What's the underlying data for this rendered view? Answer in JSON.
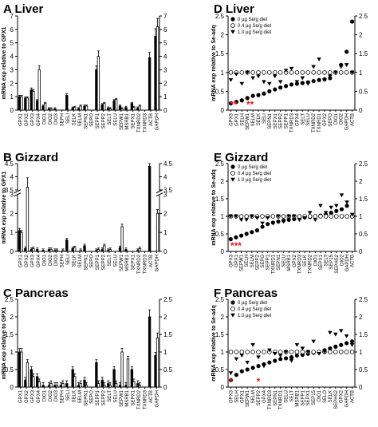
{
  "chart_data": [
    {
      "id": "A",
      "type": "bar",
      "panel_letter": "A",
      "title": "Liver",
      "ylabel": "mRNA exp relative to GPX1",
      "ylim": [
        0,
        7
      ],
      "yticks": [
        0,
        1,
        2,
        3,
        4,
        5,
        6,
        7
      ],
      "categories": [
        "GPX1",
        "GPX2",
        "GPX3",
        "GPX4",
        "DIO1",
        "DIO2",
        "DIO3",
        "SEPH",
        "SELI",
        "SELK",
        "SELM",
        "SEPN1",
        "SEPO",
        "SEPP1",
        "SEPP2",
        "SELT",
        "SELU",
        "SEPW1",
        "MSRB1",
        "SEPX1",
        "TXNRD2",
        "TXNRD3",
        "ACTB",
        "GAPDH"
      ],
      "series": [
        {
          "values": [
            1.0,
            0.9,
            1.5,
            0.7,
            0.3,
            0.1,
            0.1,
            0.0,
            1.1,
            0.15,
            0.1,
            0.3,
            0.0,
            3.0,
            0.4,
            0.15,
            0.7,
            0.3,
            0.2,
            0.5,
            0.15,
            0.0,
            3.9,
            5.5
          ]
        },
        {
          "values": [
            1.0,
            0.9,
            1.4,
            3.0,
            0.5,
            0.1,
            0.0,
            0.0,
            0.0,
            0.2,
            0.3,
            0.3,
            0.0,
            4.0,
            0.5,
            0.1,
            0.8,
            0.1,
            0.0,
            0.2,
            0.3,
            0.0,
            0.0,
            6.2
          ]
        }
      ]
    },
    {
      "id": "B",
      "type": "bar",
      "panel_letter": "B",
      "title": "Gizzard",
      "ylabel": "mRNA exp relative to GPX1",
      "ylim": [
        0,
        4.5
      ],
      "yticks_left": [
        0,
        1,
        2,
        3,
        3.5,
        4,
        4.5
      ],
      "yticks_right": [
        0,
        1,
        2,
        3,
        3.5,
        4,
        4.5
      ],
      "axis_break": true,
      "categories": [
        "GPX1",
        "GPX2",
        "GPX3",
        "GPX4",
        "DIO1",
        "DIO2",
        "DIO3",
        "SEPH",
        "SELI",
        "SELK",
        "SELM",
        "SEPN1",
        "SEPO",
        "SEPP1",
        "SEPP2",
        "SELT",
        "SELU",
        "SEPW1",
        "MSRB1",
        "SEPX1",
        "TXNRD2",
        "TXNRD3",
        "ACTB",
        "GAPDH"
      ],
      "series": [
        {
          "values": [
            1.1,
            0.15,
            0.1,
            0.1,
            0.05,
            0.1,
            0.05,
            0.0,
            0.6,
            0.15,
            0.0,
            0.3,
            0.0,
            0.05,
            0.1,
            0.05,
            0.0,
            0.2,
            0.1,
            0.0,
            0.05,
            0.0,
            4.4,
            0.0
          ]
        },
        {
          "values": [
            1.0,
            3.6,
            0.15,
            0.0,
            0.0,
            0.1,
            0.05,
            0.05,
            0.0,
            0.2,
            0.05,
            0.0,
            0.0,
            0.1,
            0.3,
            0.1,
            0.0,
            1.3,
            0.0,
            0.0,
            0.15,
            0.0,
            0.0,
            2.0
          ]
        }
      ]
    },
    {
      "id": "C",
      "type": "bar",
      "panel_letter": "C",
      "title": "Pancreas",
      "ylabel": "mRNA exp relative to GPX1",
      "ylim": [
        0,
        2.5
      ],
      "yticks": [
        0,
        0.5,
        1,
        1.5,
        2,
        2.5
      ],
      "categories": [
        "GPX1",
        "GPX2",
        "GPX3",
        "GPX4",
        "DIO1",
        "DIO2",
        "DIO3",
        "SEPH",
        "SELI",
        "SELK",
        "SELM",
        "SEPN1",
        "SEPO",
        "SEPP1",
        "SEPP2",
        "SELT",
        "SELU",
        "SEPW1",
        "MSRB1",
        "SEPX1",
        "TXNRD2",
        "TXNRD3",
        "ACTB",
        "GAPDH"
      ],
      "series": [
        {
          "values": [
            1.0,
            0.2,
            0.5,
            0.3,
            0.05,
            0.05,
            0.05,
            0.05,
            0.1,
            0.5,
            0.05,
            0.2,
            0.0,
            0.7,
            0.2,
            0.1,
            0.5,
            0.05,
            0.05,
            0.5,
            0.1,
            0.0,
            2.0,
            0.9
          ]
        },
        {
          "values": [
            1.0,
            0.7,
            0.3,
            0.15,
            0.0,
            0.1,
            0.05,
            0.1,
            0.0,
            0.3,
            0.1,
            0.05,
            0.0,
            0.1,
            0.05,
            0.05,
            0.1,
            1.0,
            0.8,
            0.15,
            0.05,
            0.0,
            0.0,
            1.4
          ]
        }
      ]
    },
    {
      "id": "D",
      "type": "scatter",
      "panel_letter": "D",
      "title": "Liver",
      "ylabel": "mRNA exp relative to Se-adq",
      "ylim": [
        0,
        2.5
      ],
      "yticks": [
        0,
        0.5,
        1,
        1.5,
        2,
        2.5
      ],
      "legend": [
        "0 µg Se/g diet",
        "0.4 µg Se/g diet",
        "1.0 µg Se/g diet"
      ],
      "legend_position": "top-left",
      "categories": [
        "GPX3",
        "GPX1",
        "SELH",
        "SEPW1",
        "SELM",
        "SELK",
        "SELI",
        "SEPN1",
        "SEPX1",
        "SEPP2",
        "SEPP1",
        "TXNRD3",
        "GPX4",
        "SELT",
        "SELU",
        "TXNRD2",
        "TXNRD1",
        "GPX2",
        "SEPO",
        "DIO1",
        "DIO2",
        "GAPDH",
        "ACTB"
      ],
      "series": [
        {
          "name": "0 µg Se/g diet",
          "values": [
            0.18,
            0.22,
            0.26,
            0.32,
            0.38,
            0.4,
            0.44,
            0.5,
            0.55,
            0.6,
            0.64,
            0.68,
            0.7,
            0.72,
            0.74,
            0.77,
            0.8,
            0.82,
            0.85,
            1.0,
            1.2,
            1.55,
            2.35
          ]
        },
        {
          "name": "0.4 µg Se/g diet",
          "values": [
            1,
            1,
            1,
            1,
            1,
            1,
            1,
            1,
            1,
            1,
            1,
            1,
            1,
            1,
            1,
            1,
            1,
            1,
            1,
            1,
            1,
            1,
            1
          ]
        },
        {
          "name": "1.0 µg Se/g diet",
          "values": [
            0.8,
            0.95,
            0.7,
            1.0,
            0.85,
            0.9,
            0.75,
            0.7,
            0.9,
            0.75,
            1.05,
            1.1,
            0.75,
            0.85,
            0.7,
            1.15,
            1.35,
            0.8,
            0.9,
            1.0,
            1.15,
            1.2,
            1.0
          ]
        }
      ],
      "significance": [
        {
          "categories": [
            "GPX3",
            "GPX1"
          ],
          "label": "**"
        },
        {
          "categories": [
            "SEPW1",
            "SELM"
          ],
          "label": "**"
        }
      ]
    },
    {
      "id": "E",
      "type": "scatter",
      "panel_letter": "E",
      "title": "Gizzard",
      "ylabel": "mRNA exp relative to Se-adq",
      "ylim": [
        0,
        2.5
      ],
      "yticks": [
        0,
        0.5,
        1,
        1.5,
        2,
        2.5
      ],
      "legend": [
        "0 µg Se/g diet",
        "0.4 µg Se/g diet",
        "1.0 µg Se/g diet"
      ],
      "legend_position": "top-left",
      "categories": [
        "GPX3",
        "GPX1",
        "SEPW1",
        "SELH",
        "SELM",
        "SEPP2",
        "SEPO",
        "SEPP1",
        "TXNRD1",
        "SEPN1",
        "SELU",
        "MSRB1",
        "GPX2",
        "TXNRD3",
        "SELK",
        "TXNRD2",
        "DIO1",
        "SEPX1",
        "SELT",
        "SEP15",
        "SEPHS2",
        "DIO2",
        "GAPDH",
        "ACTB"
      ],
      "series": [
        {
          "name": "0 µg Se/g diet",
          "values": [
            0.35,
            0.4,
            0.45,
            0.5,
            0.55,
            0.6,
            0.7,
            0.78,
            0.82,
            0.85,
            0.88,
            0.9,
            0.92,
            0.95,
            0.97,
            0.98,
            1.0,
            1.02,
            1.05,
            1.1,
            1.15,
            1.2,
            1.3,
            1.0
          ]
        },
        {
          "name": "0.4 µg Se/g diet",
          "values": [
            1,
            1,
            1,
            1,
            1,
            1,
            1,
            1,
            1,
            1,
            1,
            1,
            1,
            1,
            1,
            1,
            1,
            1,
            1,
            1,
            1,
            1,
            1,
            1
          ]
        },
        {
          "name": "1.0 µg Se/g diet",
          "values": [
            1.0,
            1.0,
            0.9,
            0.9,
            1.0,
            0.95,
            0.8,
            0.95,
            0.8,
            1.0,
            0.85,
            1.0,
            1.0,
            0.9,
            0.95,
            1.1,
            0.9,
            1.3,
            1.1,
            1.25,
            1.3,
            1.6,
            1.4,
            1.05
          ]
        }
      ],
      "significance": [
        {
          "categories": [
            "GPX3",
            "GPX1",
            "SEPW1"
          ],
          "label": "***"
        }
      ]
    },
    {
      "id": "F",
      "type": "scatter",
      "panel_letter": "F",
      "title": "Pancreas",
      "ylabel": "mRNA exp relative to Se-adq",
      "ylim": [
        0,
        2.5
      ],
      "yticks": [
        0,
        0.5,
        1,
        1.5,
        2,
        2.5
      ],
      "legend": [
        "0 µg Se/g diet",
        "0.4 µg Se/g diet",
        "1.0 µg Se/g diet"
      ],
      "legend_position": "top-left",
      "categories": [
        "GPX3",
        "SELH",
        "GPX1",
        "SEPW1",
        "SELM",
        "SEPP2",
        "GPX4",
        "TXNRD3",
        "SEPN1",
        "TXNRD1",
        "SELU",
        "SELT",
        "MSRB1",
        "SEPP1",
        "SEPX1",
        "SEP15",
        "DIO1",
        "SELO",
        "SELK",
        "SEPHS2",
        "GPX2",
        "GAPDH",
        "ACTB"
      ],
      "series": [
        {
          "name": "0 µg Se/g diet",
          "values": [
            0.2,
            0.35,
            0.45,
            0.5,
            0.55,
            0.6,
            0.65,
            0.7,
            0.75,
            0.8,
            0.82,
            0.85,
            0.9,
            0.92,
            0.95,
            0.98,
            1.0,
            1.05,
            1.1,
            1.15,
            1.2,
            1.25,
            1.3
          ]
        },
        {
          "name": "0.4 µg Se/g diet",
          "values": [
            1,
            1,
            1,
            1,
            1,
            1,
            1,
            1,
            1,
            1,
            1,
            1,
            1,
            1,
            1,
            1,
            1,
            1,
            1,
            1,
            1,
            1,
            1
          ]
        },
        {
          "name": "1.0 µg Se/g diet",
          "values": [
            0.4,
            0.8,
            0.9,
            0.7,
            1.2,
            0.85,
            0.6,
            1.05,
            0.95,
            0.9,
            1.0,
            0.75,
            1.2,
            1.1,
            1.0,
            1.3,
            0.95,
            1.0,
            1.55,
            1.5,
            1.6,
            1.45,
            1.2
          ]
        }
      ],
      "significance": [
        {
          "categories": [
            "GPX3"
          ],
          "label": "*"
        },
        {
          "categories": [
            "SEPP2"
          ],
          "label": "*"
        }
      ]
    }
  ]
}
